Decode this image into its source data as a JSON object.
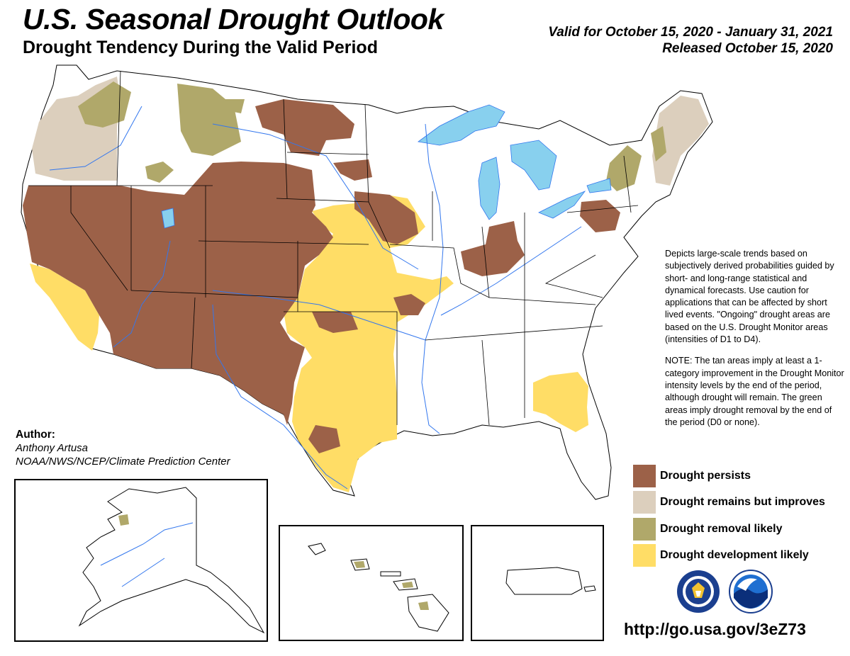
{
  "title": "U.S. Seasonal Drought Outlook",
  "subtitle": "Drought Tendency During the Valid Period",
  "valid_range": "Valid for October 15, 2020 - January 31, 2021",
  "released": "Released October 15, 2020",
  "description": {
    "paragraph1": "Depicts large-scale trends based on subjectively derived probabilities guided by short- and long-range statistical and dynamical forecasts. Use caution for applications that can be affected by short lived events. \"Ongoing\" drought areas are based on the U.S. Drought Monitor areas (intensities of D1 to D4).",
    "paragraph2": "NOTE: The tan areas imply at least a 1-category improvement in the Drought Monitor intensity levels by the end of the period, although drought will remain. The green areas imply drought removal by the end of the period (D0 or none)."
  },
  "author": {
    "heading": "Author:",
    "name": "Anthony Artusa",
    "organization": "NOAA/NWS/NCEP/Climate Prediction Center"
  },
  "legend": [
    {
      "label": "Drought persists",
      "color": "#9c6148"
    },
    {
      "label": "Drought remains but improves",
      "color": "#dccfbd"
    },
    {
      "label": "Drought removal likely",
      "color": "#b0a86a"
    },
    {
      "label": "Drought development likely",
      "color": "#ffdd66"
    }
  ],
  "short_url": "http://go.usa.gov/3eZ73",
  "colors": {
    "persists": "#9c6148",
    "improves": "#dccfbd",
    "removal": "#b0a86a",
    "development": "#ffdd66",
    "water": "#88d0ee",
    "river": "#3377ee",
    "boundary": "#000000"
  },
  "icons": {
    "logo_left": "department-of-commerce-seal",
    "logo_right": "noaa-logo"
  }
}
